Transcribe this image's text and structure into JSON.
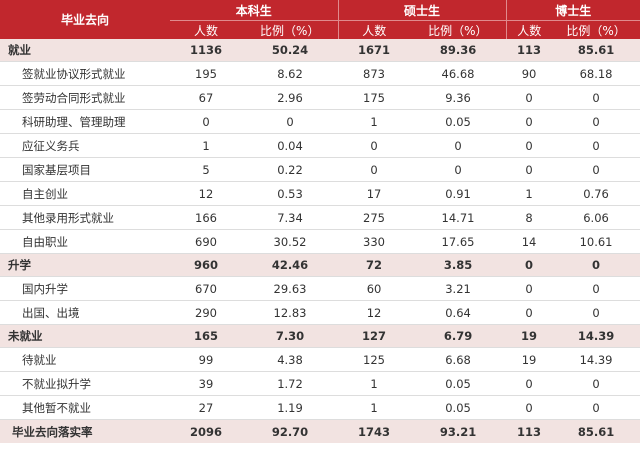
{
  "header": {
    "corner": "毕业去向",
    "groups": [
      "本科生",
      "硕士生",
      "博士生"
    ],
    "sub": [
      "人数",
      "比例（%）",
      "人数",
      "比例（%）",
      "人数",
      "比例（%）"
    ]
  },
  "rows": [
    {
      "type": "section",
      "label": "就业",
      "cells": [
        "1136",
        "50.24",
        "1671",
        "89.36",
        "113",
        "85.61"
      ]
    },
    {
      "type": "item",
      "label": "签就业协议形式就业",
      "cells": [
        "195",
        "8.62",
        "873",
        "46.68",
        "90",
        "68.18"
      ]
    },
    {
      "type": "item",
      "label": "签劳动合同形式就业",
      "cells": [
        "67",
        "2.96",
        "175",
        "9.36",
        "0",
        "0"
      ]
    },
    {
      "type": "item",
      "label": "科研助理、管理助理",
      "cells": [
        "0",
        "0",
        "1",
        "0.05",
        "0",
        "0"
      ]
    },
    {
      "type": "item",
      "label": "应征义务兵",
      "cells": [
        "1",
        "0.04",
        "0",
        "0",
        "0",
        "0"
      ]
    },
    {
      "type": "item",
      "label": "国家基层项目",
      "cells": [
        "5",
        "0.22",
        "0",
        "0",
        "0",
        "0"
      ]
    },
    {
      "type": "item",
      "label": "自主创业",
      "cells": [
        "12",
        "0.53",
        "17",
        "0.91",
        "1",
        "0.76"
      ]
    },
    {
      "type": "item",
      "label": "其他录用形式就业",
      "cells": [
        "166",
        "7.34",
        "275",
        "14.71",
        "8",
        "6.06"
      ]
    },
    {
      "type": "item",
      "label": "自由职业",
      "cells": [
        "690",
        "30.52",
        "330",
        "17.65",
        "14",
        "10.61"
      ]
    },
    {
      "type": "section",
      "label": "升学",
      "cells": [
        "960",
        "42.46",
        "72",
        "3.85",
        "0",
        "0"
      ]
    },
    {
      "type": "item",
      "label": "国内升学",
      "cells": [
        "670",
        "29.63",
        "60",
        "3.21",
        "0",
        "0"
      ]
    },
    {
      "type": "item",
      "label": "出国、出境",
      "cells": [
        "290",
        "12.83",
        "12",
        "0.64",
        "0",
        "0"
      ]
    },
    {
      "type": "section",
      "label": "未就业",
      "cells": [
        "165",
        "7.30",
        "127",
        "6.79",
        "19",
        "14.39"
      ]
    },
    {
      "type": "item",
      "label": "待就业",
      "cells": [
        "99",
        "4.38",
        "125",
        "6.68",
        "19",
        "14.39"
      ]
    },
    {
      "type": "item",
      "label": "不就业拟升学",
      "cells": [
        "39",
        "1.72",
        "1",
        "0.05",
        "0",
        "0"
      ]
    },
    {
      "type": "item",
      "label": "其他暂不就业",
      "cells": [
        "27",
        "1.19",
        "1",
        "0.05",
        "0",
        "0"
      ]
    },
    {
      "type": "total",
      "label": "毕业去向落实率",
      "cells": [
        "2096",
        "92.70",
        "1743",
        "93.21",
        "113",
        "85.61"
      ]
    }
  ]
}
